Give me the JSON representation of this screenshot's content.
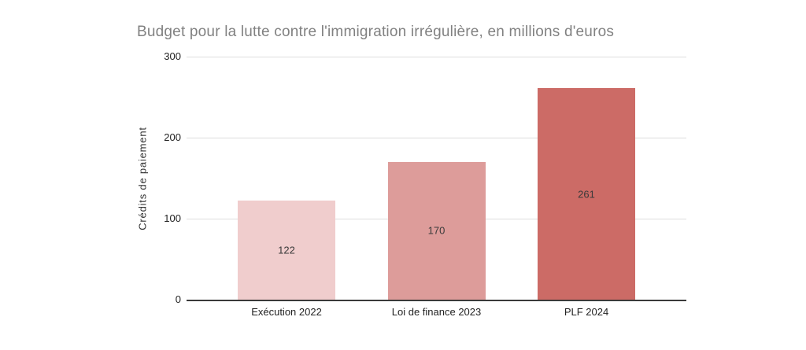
{
  "chart_data": {
    "type": "bar",
    "title": "Budget pour la lutte contre l'immigration irrégulière, en millions d'euros",
    "xlabel": "",
    "ylabel": "Crédits de paiement",
    "categories": [
      "Exécution 2022",
      "Loi de finance 2023",
      "PLF 2024"
    ],
    "values": [
      122,
      170,
      261
    ],
    "bar_colors": [
      "#f0cdcd",
      "#dd9c9a",
      "#cc6b66"
    ],
    "ylim": [
      0,
      300
    ],
    "yticks": [
      0,
      100,
      200,
      300
    ],
    "grid": true,
    "legend": "none",
    "colors": {
      "title_text": "#818181",
      "axis_text": "#222222",
      "value_label_text": "#3a3a3a",
      "gridline": "#dddddd",
      "axis_line": "#3a3a3a",
      "background": "#ffffff"
    }
  }
}
